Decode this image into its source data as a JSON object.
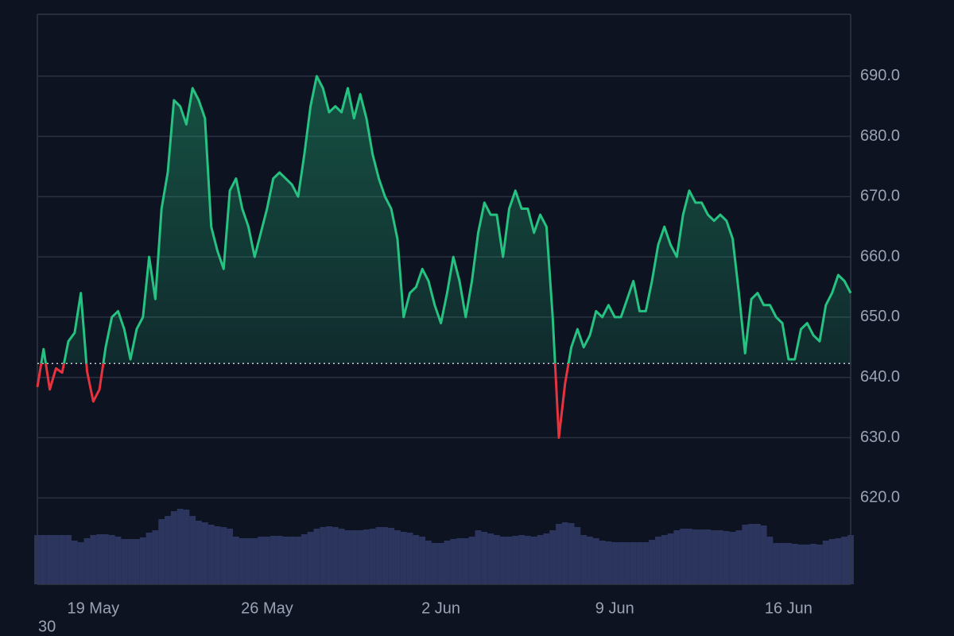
{
  "chart_data": {
    "type": "line",
    "categories": [
      null,
      null,
      null,
      null,
      null,
      null,
      null,
      null,
      null,
      "19 May",
      null,
      null,
      null,
      null,
      null,
      null,
      null,
      null,
      null,
      null,
      null,
      null,
      null,
      null,
      null,
      null,
      null,
      null,
      null,
      null,
      null,
      null,
      null,
      null,
      null,
      null,
      null,
      "26 May",
      null,
      null,
      null,
      null,
      null,
      null,
      null,
      null,
      null,
      null,
      null,
      null,
      null,
      null,
      null,
      null,
      null,
      null,
      null,
      null,
      null,
      null,
      null,
      null,
      null,
      null,
      null,
      "2 Jun",
      null,
      null,
      null,
      null,
      null,
      null,
      null,
      null,
      null,
      null,
      null,
      null,
      null,
      null,
      null,
      null,
      null,
      null,
      null,
      null,
      null,
      null,
      null,
      null,
      null,
      null,
      null,
      "9 Jun",
      null,
      null,
      null,
      null,
      null,
      null,
      null,
      null,
      null,
      null,
      null,
      null,
      null,
      null,
      null,
      null,
      null,
      null,
      null,
      null,
      null,
      null,
      null,
      null,
      null,
      null,
      null,
      "16 Jun",
      null,
      null,
      null,
      null,
      null,
      null,
      null,
      null,
      null,
      null
    ],
    "values": [
      638.4,
      644.7,
      638,
      641.5,
      640.8,
      646,
      647.4,
      654,
      641,
      636,
      638,
      645,
      650,
      651,
      648,
      643,
      648,
      650,
      660,
      653,
      668,
      674,
      686,
      685,
      682,
      688,
      686,
      683,
      665,
      661,
      658,
      671,
      673,
      668,
      665,
      660,
      664,
      668,
      673,
      674,
      673,
      672,
      670,
      677,
      685,
      690,
      688,
      684,
      685,
      684,
      688,
      683,
      687,
      683,
      677,
      673,
      670,
      668,
      663,
      650,
      654,
      655,
      658,
      656,
      652,
      649,
      654,
      660,
      656,
      650,
      656,
      664,
      669,
      667,
      667,
      660,
      668,
      671,
      668,
      668,
      664,
      667,
      665,
      650,
      630,
      639,
      645,
      648,
      645,
      647,
      651,
      650,
      652,
      650,
      650,
      653,
      656,
      651,
      651,
      656,
      662,
      665,
      662,
      660,
      667,
      671,
      669,
      669,
      667,
      666,
      667,
      666,
      663,
      654,
      644,
      653,
      654,
      652,
      652,
      650,
      649,
      643,
      643,
      648,
      649,
      647,
      646,
      652,
      654,
      657,
      656,
      654
    ],
    "color": "#26c281",
    "down_color": "#e5343f",
    "baseline": 642.3,
    "ylim": [
      605.66,
      700.26
    ],
    "yticks": [
      {
        "value": 620,
        "label": "620.0"
      },
      {
        "value": 630,
        "label": "630.0"
      },
      {
        "value": 640,
        "label": "640.0"
      },
      {
        "value": 650,
        "label": "650.0"
      },
      {
        "value": 660,
        "label": "660.0"
      },
      {
        "value": 670,
        "label": "670.0"
      },
      {
        "value": 680,
        "label": "680.0"
      },
      {
        "value": 690,
        "label": "690.0"
      }
    ],
    "grid": true,
    "volume": {
      "color": "#2c355e",
      "lim": [
        0,
        120
      ],
      "values": [
        62,
        62,
        62,
        62,
        62,
        62,
        55,
        53,
        58,
        62,
        63,
        63,
        62,
        60,
        57,
        57,
        57,
        59,
        65,
        68,
        82,
        86,
        92,
        95,
        94,
        86,
        80,
        78,
        75,
        73,
        72,
        70,
        60,
        58,
        58,
        58,
        60,
        60,
        61,
        61,
        60,
        60,
        60,
        63,
        66,
        70,
        72,
        73,
        72,
        70,
        68,
        68,
        68,
        69,
        70,
        72,
        72,
        71,
        68,
        66,
        65,
        62,
        60,
        55,
        52,
        52,
        55,
        57,
        58,
        58,
        60,
        68,
        66,
        64,
        62,
        60,
        60,
        61,
        62,
        61,
        60,
        62,
        64,
        68,
        76,
        78,
        77,
        72,
        62,
        60,
        58,
        55,
        54,
        53,
        53,
        53,
        53,
        53,
        53,
        56,
        60,
        62,
        64,
        68,
        70,
        70,
        69,
        69,
        69,
        68,
        68,
        67,
        66,
        68,
        75,
        76,
        76,
        74,
        60,
        52,
        52,
        52,
        51,
        50,
        50,
        51,
        50,
        55,
        57,
        58,
        60,
        62
      ]
    },
    "corner_label": "30"
  }
}
